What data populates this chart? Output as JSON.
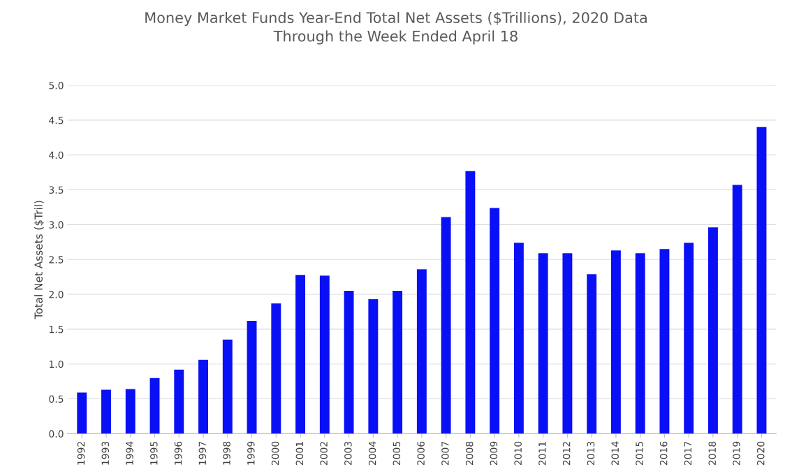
{
  "chart_data": {
    "type": "bar",
    "title": "Money Market Funds Year-End Total Net Assets ($Trillions), 2020 Data\nThrough the Week Ended April 18",
    "ylabel": "Total Net Assets ($Tril)",
    "categories": [
      "1992",
      "1993",
      "1994",
      "1995",
      "1996",
      "1997",
      "1998",
      "1999",
      "2000",
      "2001",
      "2002",
      "2003",
      "2004",
      "2005",
      "2006",
      "2007",
      "2008",
      "2009",
      "2010",
      "2011",
      "2012",
      "2013",
      "2014",
      "2015",
      "2016",
      "2017",
      "2018",
      "2019",
      "2020"
    ],
    "values": [
      0.59,
      0.63,
      0.64,
      0.8,
      0.92,
      1.06,
      1.35,
      1.62,
      1.87,
      2.28,
      2.27,
      2.05,
      1.93,
      2.05,
      2.36,
      3.11,
      3.77,
      3.24,
      2.74,
      2.59,
      2.59,
      2.29,
      2.63,
      2.59,
      2.65,
      2.74,
      2.96,
      3.57,
      4.4
    ],
    "color": "#0a10f5",
    "ylim": [
      0,
      5
    ],
    "yticks": [
      {
        "value": 0,
        "label": "0.0"
      },
      {
        "value": 0.5,
        "label": "0.5"
      },
      {
        "value": 1,
        "label": "1.0"
      },
      {
        "value": 1.5,
        "label": "1.5"
      },
      {
        "value": 2,
        "label": "2.0"
      },
      {
        "value": 2.5,
        "label": "2.5"
      },
      {
        "value": 3,
        "label": "3.0"
      },
      {
        "value": 3.5,
        "label": "3.5"
      },
      {
        "value": 4,
        "label": "4.0"
      },
      {
        "value": 4.5,
        "label": "4.5"
      },
      {
        "value": 5,
        "label": "5.0"
      }
    ],
    "grid": "y"
  }
}
